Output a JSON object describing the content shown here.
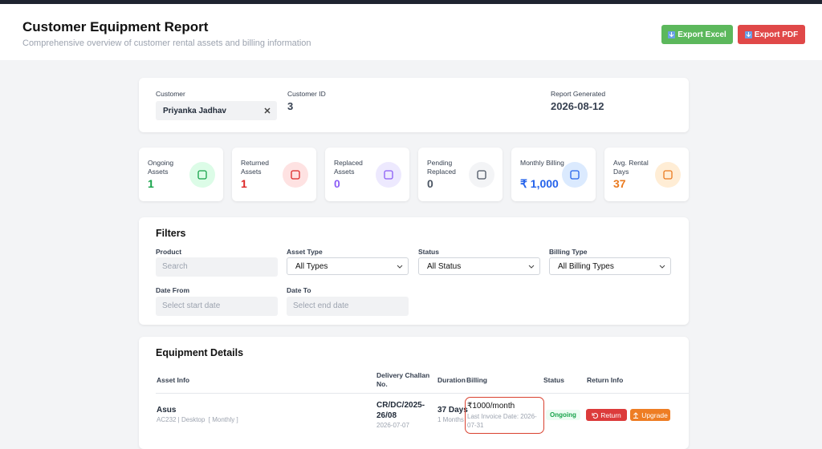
{
  "header": {
    "title": "Customer Equipment Report",
    "subtitle": "Comprehensive overview of customer rental assets and billing information",
    "buttons": [
      "Export Excel",
      "Export PDF"
    ]
  },
  "customer": {
    "customer_label": "Customer",
    "customer_value": "Priyanka Jadhav",
    "id_label": "Customer ID",
    "id_value": "3",
    "report_label": "Report Generated",
    "report_value": "2026-08-12"
  },
  "stats": [
    {
      "label": "Ongoing Assets",
      "value": "1"
    },
    {
      "label": "Returned Assets",
      "value": "1"
    },
    {
      "label": "Replaced Assets",
      "value": "0"
    },
    {
      "label": "Pending Replaced",
      "value": "0"
    },
    {
      "label": "Monthly Billing",
      "value": "₹ 1,000"
    },
    {
      "label": "Avg. Rental Days",
      "value": "37"
    }
  ],
  "filters": {
    "title": "Filters",
    "fields": [
      {
        "label": "Product",
        "placeholder": "Search"
      },
      {
        "label": "Asset Type",
        "placeholder": "All Types"
      },
      {
        "label": "Status",
        "placeholder": "All Status"
      },
      {
        "label": "Billing Type",
        "placeholder": "All Billing Types"
      },
      {
        "label": "Date From",
        "placeholder": "Select start date"
      },
      {
        "label": "Date To",
        "placeholder": "Select end date"
      }
    ]
  },
  "table": {
    "title": "Equipment Details",
    "columns": [
      "Asset Info",
      "Delivery Challan No.",
      "Duration",
      "Billing",
      "Status",
      "Return Info"
    ],
    "rows": [
      {
        "asset": "Asus",
        "asset_detail": "AC232 | Desktop  [ Monthly ]",
        "challan": "CR/DC/2025-26/08",
        "challan_date": "2026-07-07",
        "duration": "37 Days",
        "duration_detail": "1 Months",
        "billing": "₹1000/month",
        "billing_detail": "Last Invoice Date: 2026-07-31",
        "status": "Ongoing",
        "actions": [
          "Return",
          "Upgrade"
        ]
      }
    ]
  }
}
